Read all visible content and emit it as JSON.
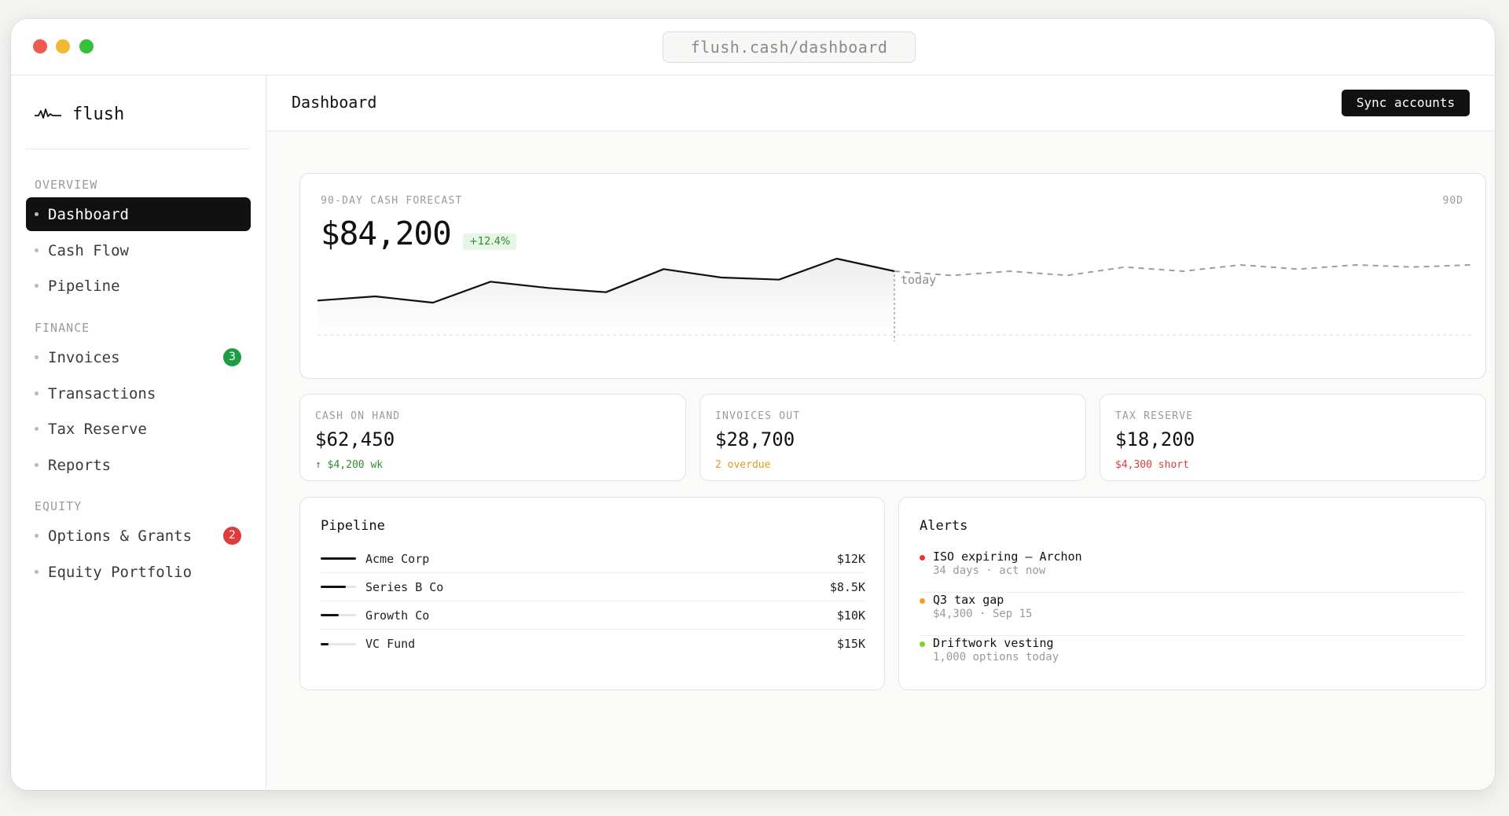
{
  "browser": {
    "url": "flush.cash/dashboard"
  },
  "sidebar": {
    "brand": "flush",
    "sections": [
      {
        "label": "OVERVIEW",
        "items": [
          {
            "label": "Dashboard",
            "active": true
          },
          {
            "label": "Cash Flow"
          },
          {
            "label": "Pipeline"
          }
        ]
      },
      {
        "label": "FINANCE",
        "items": [
          {
            "label": "Invoices",
            "badge": "3",
            "badge_color": "#1f9d45"
          },
          {
            "label": "Transactions"
          },
          {
            "label": "Tax Reserve"
          },
          {
            "label": "Reports"
          }
        ]
      },
      {
        "label": "EQUITY",
        "items": [
          {
            "label": "Options & Grants",
            "badge": "2",
            "badge_color": "#e03b3b"
          },
          {
            "label": "Equity Portfolio"
          }
        ]
      }
    ]
  },
  "header": {
    "title": "Dashboard",
    "sync_label": "Sync accounts"
  },
  "forecast": {
    "label": "90-DAY CASH FORECAST",
    "amount": "$84,200",
    "change": "+12.4%",
    "period": "90D",
    "today_label": "today"
  },
  "chart_data": {
    "type": "line",
    "title": "90-DAY CASH FORECAST",
    "series": [
      {
        "style": "solid",
        "x": [
          0,
          1,
          2,
          3,
          4,
          5,
          6,
          7,
          8,
          9,
          10
        ],
        "values": [
          47,
          49,
          46,
          56,
          53,
          51,
          62,
          58,
          57,
          67,
          61
        ]
      },
      {
        "style": "dashed",
        "x": [
          10,
          11,
          12,
          13,
          14,
          15,
          16,
          17,
          18,
          19,
          20
        ],
        "values": [
          61,
          59,
          61,
          59,
          63,
          61,
          64,
          62,
          64,
          63,
          64
        ]
      }
    ],
    "annotation": {
      "x": 10,
      "label": "today"
    },
    "xlim": [
      0,
      20
    ],
    "ylim": [
      40,
      70
    ]
  },
  "stats": [
    {
      "label": "CASH ON HAND",
      "value": "$62,450",
      "sub": "↑ $4,200 wk",
      "tone": "green"
    },
    {
      "label": "INVOICES OUT",
      "value": "$28,700",
      "sub": "2 overdue",
      "tone": "orange"
    },
    {
      "label": "TAX RESERVE",
      "value": "$18,200",
      "sub": "$4,300 short",
      "tone": "red"
    }
  ],
  "pipeline": {
    "title": "Pipeline",
    "rows": [
      {
        "name": "Acme Corp",
        "amount": "$12K",
        "progress": 1.0
      },
      {
        "name": "Series B Co",
        "amount": "$8.5K",
        "progress": 0.72
      },
      {
        "name": "Growth Co",
        "amount": "$10K",
        "progress": 0.5
      },
      {
        "name": "VC Fund",
        "amount": "$15K",
        "progress": 0.22
      }
    ]
  },
  "alerts": {
    "title": "Alerts",
    "items": [
      {
        "title": "ISO expiring — Archon",
        "sub": "34 days · act now",
        "color": "#e03b3b"
      },
      {
        "title": "Q3 tax gap",
        "sub": "$4,300 · Sep 15",
        "color": "#f0a020"
      },
      {
        "title": "Driftwork vesting",
        "sub": "1,000 options today",
        "color": "#7ed321"
      }
    ]
  }
}
